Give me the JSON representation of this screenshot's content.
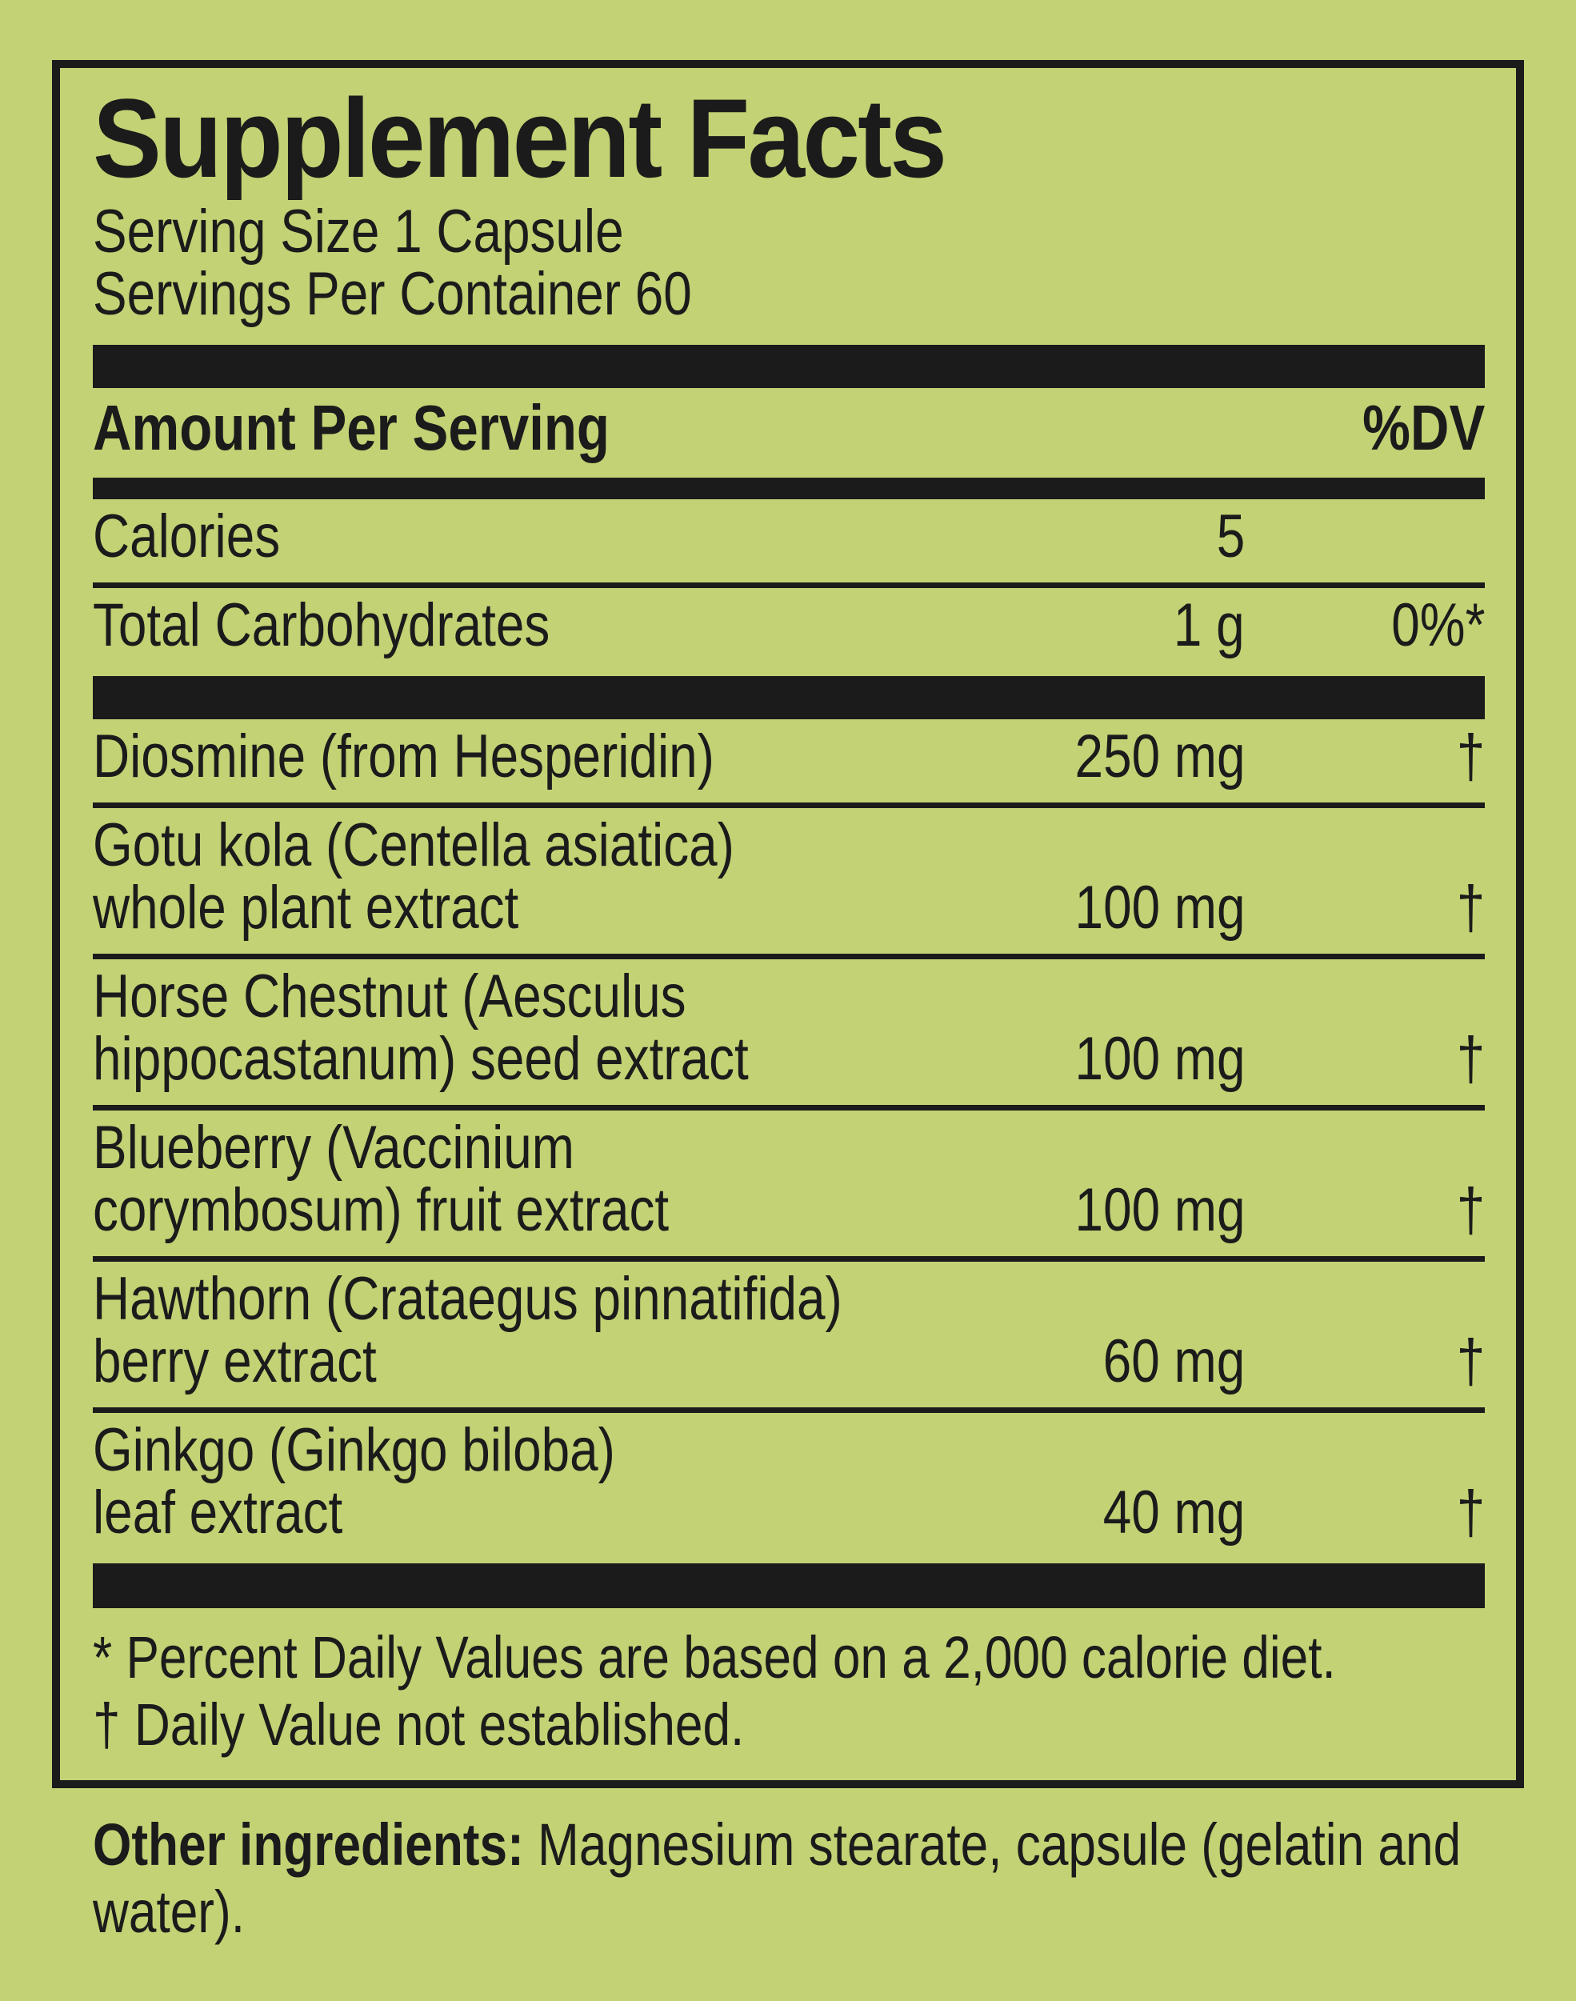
{
  "label": {
    "title": "Supplement Facts",
    "serving_size": "Serving Size 1 Capsule",
    "servings_per_container": "Servings Per Container 60",
    "amount_header": "Amount Per Serving",
    "dv_header": "%DV",
    "rows": [
      {
        "name_lines": [
          "Calories"
        ],
        "amount": "5",
        "dv": ""
      },
      {
        "name_lines": [
          "Total Carbohydrates"
        ],
        "amount": "1 g",
        "dv": "0%*"
      },
      {
        "name_lines": [
          "Diosmine (from Hesperidin)"
        ],
        "amount": "250 mg",
        "dv": "†"
      },
      {
        "name_lines": [
          "Gotu kola (Centella asiatica)",
          "whole plant extract"
        ],
        "amount": "100 mg",
        "dv": "†"
      },
      {
        "name_lines": [
          "Horse Chestnut (Aesculus",
          "hippocastanum) seed extract"
        ],
        "amount": "100 mg",
        "dv": "†"
      },
      {
        "name_lines": [
          "Blueberry (Vaccinium",
          "corymbosum) fruit extract"
        ],
        "amount": "100 mg",
        "dv": "†"
      },
      {
        "name_lines": [
          "Hawthorn (Crataegus pinnatifida)",
          "berry extract"
        ],
        "amount": "60 mg",
        "dv": "†"
      },
      {
        "name_lines": [
          "Ginkgo (Ginkgo biloba)",
          "leaf extract"
        ],
        "amount": "40 mg",
        "dv": "†"
      }
    ],
    "footnotes": [
      "* Percent Daily Values are based on a 2,000 calorie diet.",
      "† Daily Value not established."
    ],
    "other_ingredients_lead": "Other ingredients:",
    "other_ingredients_text": " Magnesium stearate, capsule (gelatin and water)."
  },
  "colors": {
    "background": "#c2d274",
    "ink": "#1b1b1b"
  }
}
